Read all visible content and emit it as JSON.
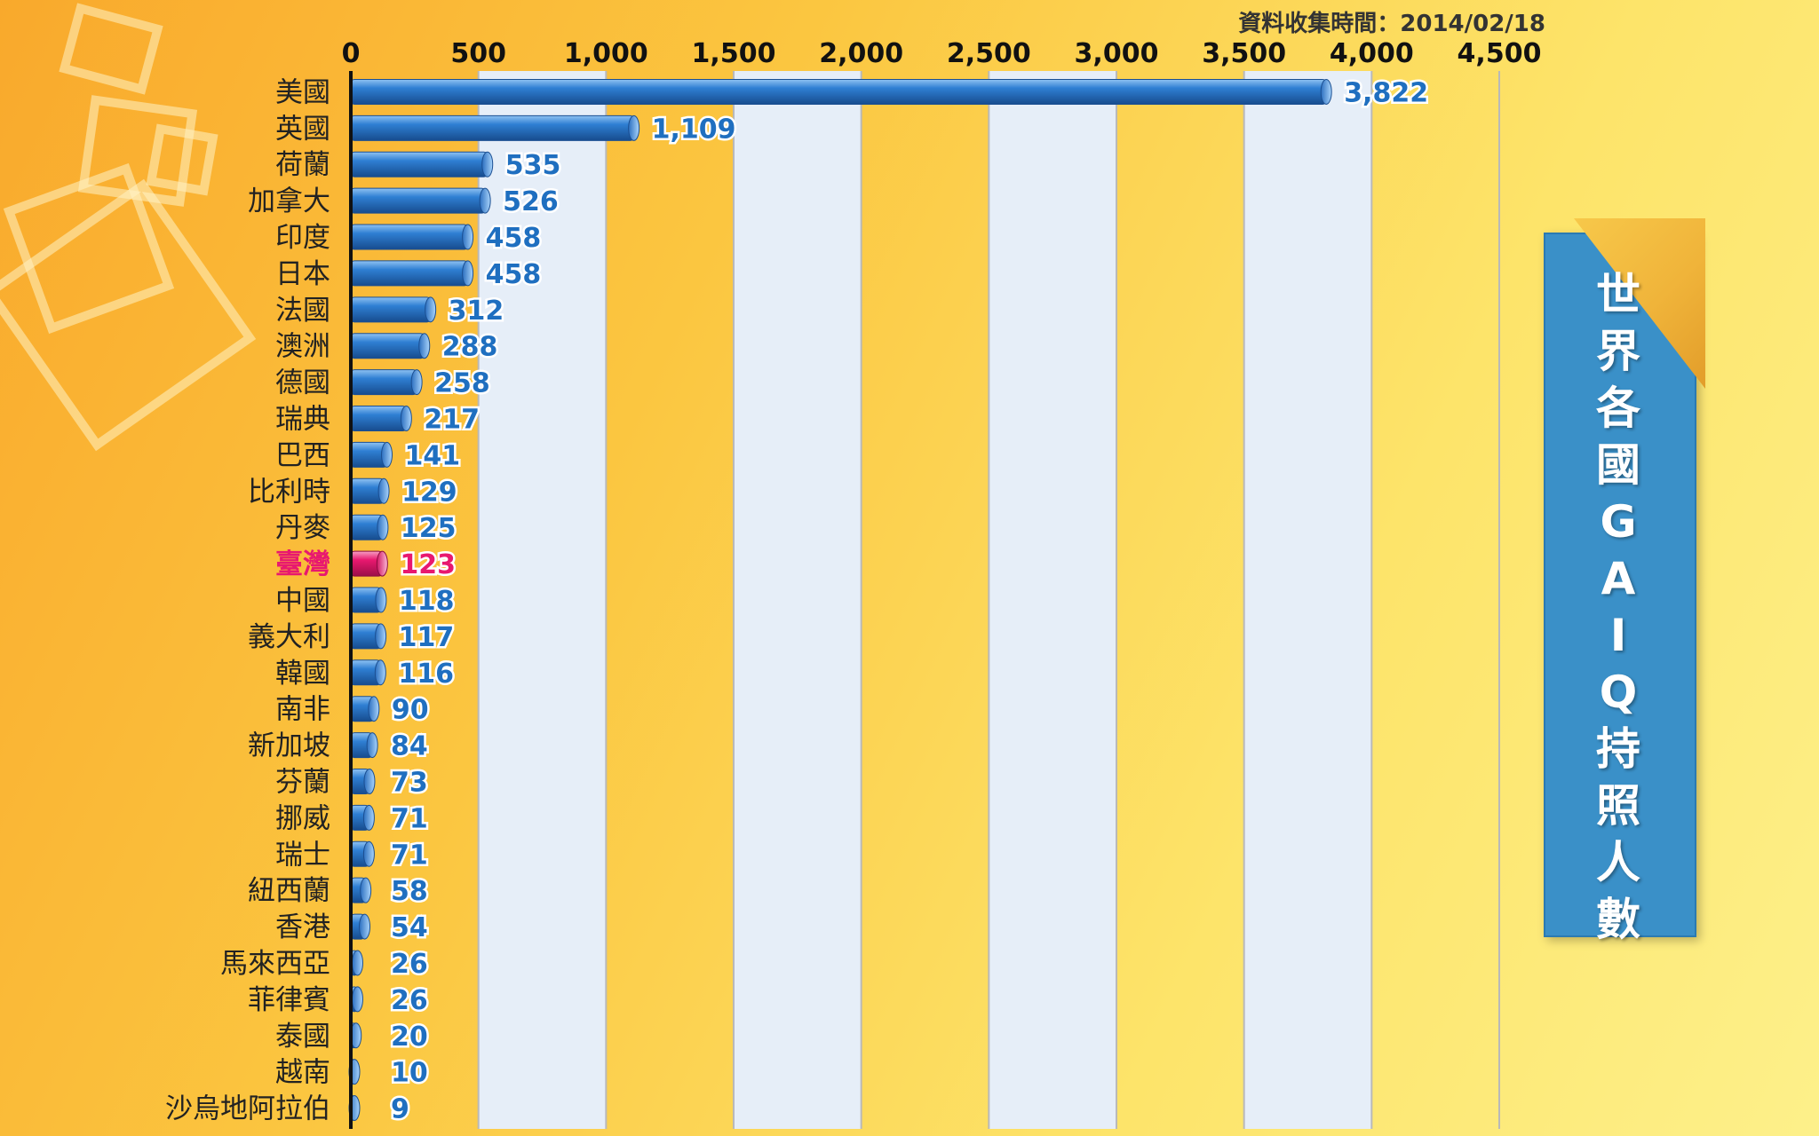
{
  "collected_label": "資料收集時間：2014/02/18",
  "side_title": [
    "世",
    "界",
    "各",
    "國",
    "G",
    "A",
    "I",
    "Q",
    "持",
    "照",
    "人",
    "數"
  ],
  "colors": {
    "bar": "#2e74c6",
    "bar_dark": "#1b4f92",
    "highlight": "#e8186f",
    "value_text": "#1f6fc0",
    "label_text": "#222222",
    "band": "#e6eef8"
  },
  "chart_data": {
    "type": "bar",
    "orientation": "horizontal",
    "title": "世界各國GAIQ持照人數",
    "xlim": [
      0,
      4500
    ],
    "xticks": [
      0,
      500,
      1000,
      1500,
      2000,
      2500,
      3000,
      3500,
      4000,
      4500
    ],
    "xtick_labels": [
      "0",
      "500",
      "1,000",
      "1,500",
      "2,000",
      "2,500",
      "3,000",
      "3,500",
      "4,000",
      "4,500"
    ],
    "highlight": "臺灣",
    "categories": [
      "美國",
      "英國",
      "荷蘭",
      "加拿大",
      "印度",
      "日本",
      "法國",
      "澳洲",
      "德國",
      "瑞典",
      "巴西",
      "比利時",
      "丹麥",
      "臺灣",
      "中國",
      "義大利",
      "韓國",
      "南非",
      "新加坡",
      "芬蘭",
      "挪威",
      "瑞士",
      "紐西蘭",
      "香港",
      "馬來西亞",
      "菲律賓",
      "泰國",
      "越南",
      "沙烏地阿拉伯"
    ],
    "values": [
      3822,
      1109,
      535,
      526,
      458,
      458,
      312,
      288,
      258,
      217,
      141,
      129,
      125,
      123,
      118,
      117,
      116,
      90,
      84,
      73,
      71,
      71,
      58,
      54,
      26,
      26,
      20,
      10,
      9
    ],
    "value_labels": [
      "3,822",
      "1,109",
      "535",
      "526",
      "458",
      "458",
      "312",
      "288",
      "258",
      "217",
      "141",
      "129",
      "125",
      "123",
      "118",
      "117",
      "116",
      "90",
      "84",
      "73",
      "71",
      "71",
      "58",
      "54",
      "26",
      "26",
      "20",
      "10",
      "9"
    ]
  }
}
